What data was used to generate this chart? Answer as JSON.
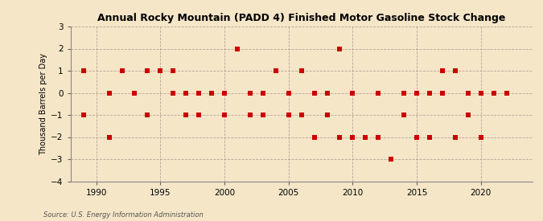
{
  "title": "Annual Rocky Mountain (PADD 4) Finished Motor Gasoline Stock Change",
  "ylabel": "Thousand Barrels per Day",
  "source": "Source: U.S. Energy Information Administration",
  "background_color": "#f5e6c8",
  "plot_background_color": "#f5e6c8",
  "marker_color": "#cc0000",
  "marker_size": 18,
  "xlim": [
    1988.0,
    2024.0
  ],
  "ylim": [
    -4,
    3
  ],
  "yticks": [
    -4,
    -3,
    -2,
    -1,
    0,
    1,
    2,
    3
  ],
  "xticks": [
    1990,
    1995,
    2000,
    2005,
    2010,
    2015,
    2020
  ],
  "years": [
    1989,
    1989,
    1991,
    1991,
    1992,
    1993,
    1994,
    1994,
    1995,
    1996,
    1996,
    1997,
    1997,
    1998,
    1998,
    1999,
    1999,
    2000,
    2000,
    2001,
    2002,
    2002,
    2003,
    2003,
    2004,
    2005,
    2005,
    2006,
    2006,
    2007,
    2007,
    2008,
    2008,
    2009,
    2009,
    2010,
    2010,
    2011,
    2012,
    2012,
    2013,
    2014,
    2014,
    2015,
    2015,
    2016,
    2016,
    2017,
    2017,
    2018,
    2018,
    2019,
    2019,
    2020,
    2020,
    2021,
    2021,
    2022,
    2022
  ],
  "values": [
    1,
    -1,
    0,
    -2,
    1,
    0,
    1,
    -1,
    1,
    1,
    0,
    0,
    -1,
    0,
    -1,
    0,
    0,
    0,
    -1,
    2,
    0,
    -1,
    0,
    -1,
    1,
    0,
    -1,
    1,
    -1,
    0,
    -2,
    0,
    -1,
    2,
    -2,
    0,
    -2,
    -2,
    0,
    -2,
    -3,
    0,
    -1,
    0,
    -2,
    0,
    -2,
    1,
    0,
    1,
    -2,
    0,
    -1,
    0,
    -2,
    0,
    0,
    0,
    0
  ]
}
